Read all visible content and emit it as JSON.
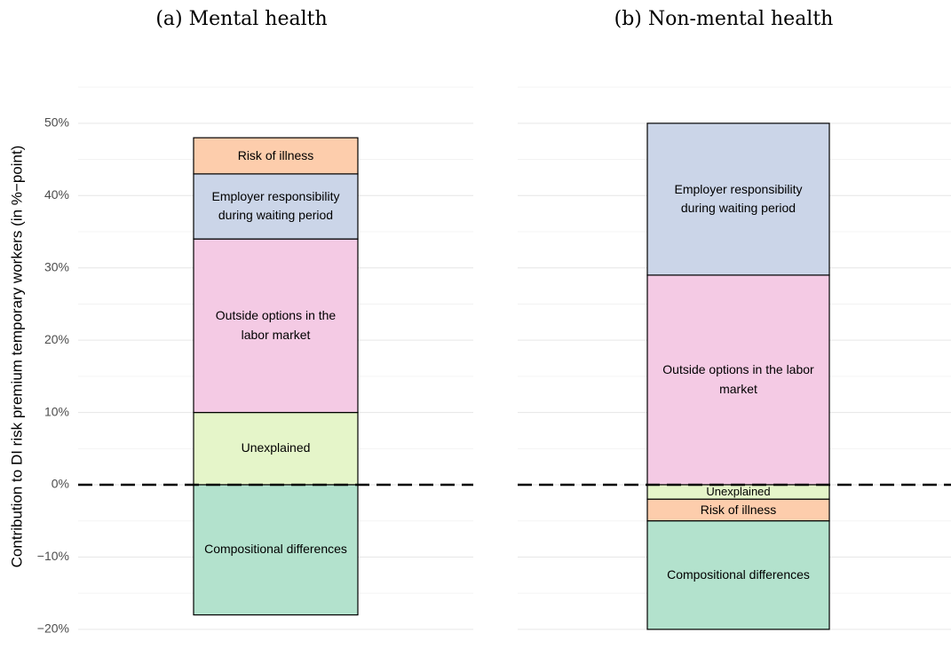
{
  "chart_data": [
    {
      "type": "bar",
      "stacked": true,
      "title": "(a) Mental health",
      "y_label": "Contribution to DI risk premium temporary workers (in %−point)",
      "categories": [
        "Unexplained",
        "Outside options in the labor market",
        "Employer responsibility during waiting period",
        "Risk of illness",
        "Compositional differences"
      ],
      "values": [
        10,
        24,
        9,
        5,
        -18
      ],
      "colors": [
        "#e5f5c9",
        "#f4cae4",
        "#cbd5e8",
        "#fdcdac",
        "#b3e2cd"
      ],
      "ylim": [
        -21,
        56
      ],
      "yticks": [
        {
          "value": -20,
          "label": "−20%"
        },
        {
          "value": -10,
          "label": "−10%"
        },
        {
          "value": 0,
          "label": "0%"
        },
        {
          "value": 10,
          "label": "10%"
        },
        {
          "value": 20,
          "label": "20%"
        },
        {
          "value": 30,
          "label": "30%"
        },
        {
          "value": 40,
          "label": "40%"
        },
        {
          "value": 50,
          "label": "50%"
        }
      ],
      "reference_line": 0,
      "grid": true
    },
    {
      "type": "bar",
      "stacked": true,
      "title": "(b) Non-mental health",
      "categories": [
        "Outside options in the labor market",
        "Employer responsibility during waiting period",
        "Unexplained",
        "Risk of illness",
        "Compositional differences"
      ],
      "values": [
        29,
        21,
        -2,
        -3,
        -15
      ],
      "colors": [
        "#f4cae4",
        "#cbd5e8",
        "#e5f5c9",
        "#fdcdac",
        "#b3e2cd"
      ],
      "ylim": [
        -21,
        56
      ],
      "yticks": [
        -20,
        -10,
        0,
        10,
        20,
        30,
        40,
        50
      ],
      "reference_line": 0,
      "grid": true
    }
  ]
}
